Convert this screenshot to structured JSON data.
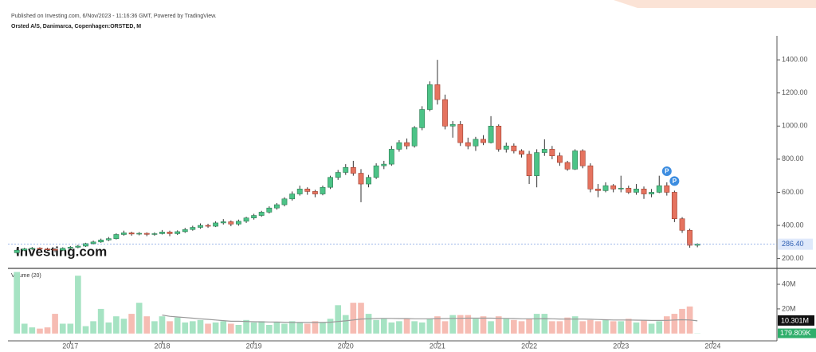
{
  "chart_data": {
    "type": "candlestick",
    "source": "Published on Investing.com, 6/Nov/2023 - 11:16:36 GMT, Powered by TradingView.",
    "title": "Orsted A/S, Danimarca, Copenhagen:ORSTED, M",
    "watermark": "Investing.com",
    "up_color": "#4cc387",
    "down_color": "#e5735f",
    "x": [
      2016.417,
      2016.5,
      2016.583,
      2016.667,
      2016.75,
      2016.833,
      2016.917,
      2017.0,
      2017.083,
      2017.167,
      2017.25,
      2017.333,
      2017.417,
      2017.5,
      2017.583,
      2017.667,
      2017.75,
      2017.833,
      2017.917,
      2018.0,
      2018.083,
      2018.167,
      2018.25,
      2018.333,
      2018.417,
      2018.5,
      2018.583,
      2018.667,
      2018.75,
      2018.833,
      2018.917,
      2019.0,
      2019.083,
      2019.167,
      2019.25,
      2019.333,
      2019.417,
      2019.5,
      2019.583,
      2019.667,
      2019.75,
      2019.833,
      2019.917,
      2020.0,
      2020.083,
      2020.167,
      2020.25,
      2020.333,
      2020.417,
      2020.5,
      2020.583,
      2020.667,
      2020.75,
      2020.833,
      2020.917,
      2021.0,
      2021.083,
      2021.167,
      2021.25,
      2021.333,
      2021.417,
      2021.5,
      2021.583,
      2021.667,
      2021.75,
      2021.833,
      2021.917,
      2022.0,
      2022.083,
      2022.167,
      2022.25,
      2022.333,
      2022.417,
      2022.5,
      2022.583,
      2022.667,
      2022.75,
      2022.833,
      2022.917,
      2023.0,
      2023.083,
      2023.167,
      2023.25,
      2023.333,
      2023.417,
      2023.5,
      2023.583,
      2023.667,
      2023.75,
      2023.833
    ],
    "ohlc": [
      [
        235,
        262,
        230,
        250
      ],
      [
        250,
        265,
        245,
        258
      ],
      [
        258,
        270,
        252,
        262
      ],
      [
        262,
        268,
        250,
        258
      ],
      [
        258,
        265,
        245,
        255
      ],
      [
        255,
        262,
        238,
        250
      ],
      [
        250,
        268,
        245,
        262
      ],
      [
        262,
        275,
        255,
        268
      ],
      [
        268,
        282,
        262,
        275
      ],
      [
        275,
        295,
        270,
        290
      ],
      [
        290,
        308,
        285,
        300
      ],
      [
        300,
        320,
        295,
        312
      ],
      [
        312,
        330,
        305,
        320
      ],
      [
        320,
        352,
        315,
        345
      ],
      [
        345,
        368,
        338,
        355
      ],
      [
        355,
        362,
        338,
        348
      ],
      [
        348,
        360,
        340,
        352
      ],
      [
        352,
        358,
        335,
        346
      ],
      [
        346,
        358,
        338,
        350
      ],
      [
        350,
        372,
        345,
        360
      ],
      [
        360,
        368,
        335,
        350
      ],
      [
        350,
        370,
        342,
        362
      ],
      [
        362,
        385,
        355,
        375
      ],
      [
        375,
        398,
        368,
        388
      ],
      [
        388,
        412,
        380,
        400
      ],
      [
        400,
        410,
        385,
        395
      ],
      [
        395,
        425,
        390,
        415
      ],
      [
        415,
        438,
        405,
        422
      ],
      [
        422,
        430,
        395,
        408
      ],
      [
        408,
        435,
        398,
        425
      ],
      [
        425,
        452,
        415,
        445
      ],
      [
        445,
        470,
        435,
        460
      ],
      [
        460,
        488,
        452,
        480
      ],
      [
        480,
        515,
        472,
        505
      ],
      [
        505,
        535,
        495,
        525
      ],
      [
        525,
        570,
        515,
        560
      ],
      [
        560,
        605,
        550,
        590
      ],
      [
        590,
        640,
        580,
        620
      ],
      [
        620,
        630,
        585,
        605
      ],
      [
        605,
        615,
        570,
        590
      ],
      [
        590,
        640,
        582,
        630
      ],
      [
        630,
        700,
        620,
        690
      ],
      [
        690,
        735,
        675,
        720
      ],
      [
        720,
        770,
        705,
        750
      ],
      [
        750,
        790,
        700,
        715
      ],
      [
        715,
        740,
        540,
        650
      ],
      [
        650,
        705,
        630,
        690
      ],
      [
        690,
        775,
        680,
        760
      ],
      [
        760,
        790,
        740,
        770
      ],
      [
        770,
        880,
        760,
        860
      ],
      [
        860,
        915,
        845,
        900
      ],
      [
        900,
        925,
        860,
        880
      ],
      [
        880,
        1000,
        870,
        990
      ],
      [
        990,
        1120,
        975,
        1100
      ],
      [
        1100,
        1270,
        1090,
        1250
      ],
      [
        1250,
        1400,
        1130,
        1160
      ],
      [
        1160,
        1190,
        980,
        1000
      ],
      [
        1000,
        1030,
        930,
        1010
      ],
      [
        1010,
        1030,
        880,
        900
      ],
      [
        900,
        930,
        860,
        880
      ],
      [
        880,
        935,
        850,
        920
      ],
      [
        920,
        945,
        885,
        900
      ],
      [
        900,
        1060,
        895,
        1000
      ],
      [
        1000,
        1010,
        845,
        860
      ],
      [
        860,
        900,
        840,
        880
      ],
      [
        880,
        895,
        835,
        850
      ],
      [
        850,
        860,
        810,
        830
      ],
      [
        830,
        850,
        650,
        700
      ],
      [
        700,
        860,
        630,
        840
      ],
      [
        840,
        920,
        820,
        860
      ],
      [
        860,
        880,
        800,
        820
      ],
      [
        820,
        840,
        760,
        780
      ],
      [
        780,
        790,
        730,
        740
      ],
      [
        740,
        860,
        735,
        850
      ],
      [
        850,
        860,
        745,
        760
      ],
      [
        760,
        775,
        600,
        620
      ],
      [
        620,
        650,
        570,
        610
      ],
      [
        610,
        660,
        600,
        640
      ],
      [
        640,
        650,
        600,
        620
      ],
      [
        620,
        700,
        600,
        625
      ],
      [
        625,
        640,
        590,
        600
      ],
      [
        600,
        650,
        585,
        620
      ],
      [
        620,
        635,
        560,
        590
      ],
      [
        590,
        620,
        570,
        600
      ],
      [
        600,
        700,
        595,
        640
      ],
      [
        640,
        660,
        580,
        600
      ],
      [
        600,
        610,
        420,
        440
      ],
      [
        440,
        450,
        355,
        370
      ],
      [
        370,
        380,
        265,
        280
      ],
      [
        280,
        292,
        268,
        286.4
      ]
    ],
    "last_price_label": "286.40",
    "markers": [
      "P",
      "P"
    ],
    "xlim": [
      2016.32,
      2024.7
    ],
    "xticks": [
      2017,
      2018,
      2019,
      2020,
      2021,
      2022,
      2023,
      2024
    ],
    "ylim": [
      150,
      1545
    ],
    "yticks": [
      {
        "value": 200,
        "label": "200.00"
      },
      {
        "value": 400,
        "label": "400.00"
      },
      {
        "value": 600,
        "label": "600.00"
      },
      {
        "value": 800,
        "label": "800.00"
      },
      {
        "value": 1000,
        "label": "1000.00"
      },
      {
        "value": 1200,
        "label": "1200.00"
      },
      {
        "value": 1400,
        "label": "1400.00"
      }
    ],
    "volume": {
      "label": "Volume (20)",
      "up_color": "#a6e3c3",
      "down_color": "#f6bcb3",
      "ma_color": "#999999",
      "values": [
        50,
        8,
        5,
        4,
        5,
        16,
        8,
        8,
        47,
        6,
        10,
        20,
        9,
        14,
        12,
        16,
        25,
        14,
        10,
        14,
        10,
        13,
        9,
        10,
        11,
        8,
        9,
        10,
        8,
        7,
        11,
        9,
        10,
        7,
        9,
        8,
        10,
        9,
        8,
        10,
        9,
        12,
        23,
        15,
        25,
        25,
        16,
        11,
        12,
        9,
        10,
        12,
        10,
        9,
        12,
        14,
        10,
        15,
        15,
        15,
        12,
        14,
        10,
        14,
        12,
        11,
        10,
        12,
        16,
        16,
        10,
        10,
        13,
        14,
        10,
        11,
        10,
        11,
        10,
        10,
        12,
        9,
        11,
        8,
        10,
        14,
        16,
        20,
        22,
        0.179809
      ],
      "ma": [
        null,
        null,
        null,
        null,
        null,
        null,
        null,
        null,
        null,
        null,
        null,
        null,
        null,
        null,
        null,
        null,
        null,
        null,
        null,
        15,
        14,
        13.5,
        13,
        12.5,
        12,
        11.5,
        11,
        10.5,
        10,
        10,
        9.8,
        9.6,
        9.5,
        9.4,
        9.3,
        9.2,
        9.1,
        9,
        9,
        9,
        9,
        9.2,
        9.8,
        10.3,
        11,
        11.8,
        12,
        12.2,
        12.3,
        12.3,
        12.2,
        12.2,
        12,
        12,
        12,
        12.2,
        12.2,
        12.3,
        12.4,
        12.5,
        12.5,
        12.5,
        12.5,
        12.4,
        12.3,
        12.2,
        12,
        12,
        12,
        12.1,
        12,
        11.8,
        11.7,
        11.8,
        11.8,
        11.6,
        11.4,
        11.2,
        11,
        11,
        11,
        10.9,
        10.8,
        10.6,
        10.6,
        10.7,
        11,
        11.2,
        11,
        10.301
      ],
      "last_value_label": "179.809K",
      "last_ma_label": "10.301M",
      "ylim": [
        -4,
        51
      ],
      "yticks": [
        {
          "value": 20,
          "label": "20M"
        },
        {
          "value": 40,
          "label": "40M"
        }
      ]
    }
  }
}
